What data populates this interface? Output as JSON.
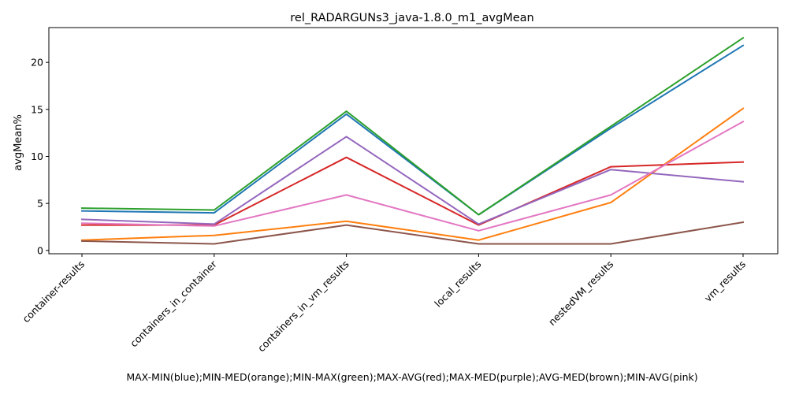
{
  "chart_data": {
    "type": "line",
    "title": "rel_RADARGUNs3_java-1.8.0_m1_avgMean",
    "xlabel": "MAX-MIN(blue);MIN-MED(orange);MIN-MAX(green);MAX-AVG(red);MAX-MED(purple);AVG-MED(brown);MIN-AVG(pink)",
    "ylabel": "avgMean%",
    "categories": [
      "container-results",
      "containers_in_container",
      "containers_in_vm_results",
      "local_results",
      "nestedVM_results",
      "vm_results"
    ],
    "ylim": [
      -0.35,
      23.7
    ],
    "yticks": [
      0,
      5,
      10,
      15,
      20
    ],
    "grid": false,
    "series": [
      {
        "color": "#1f77b4",
        "values": [
          4.2,
          4.0,
          14.5,
          3.8,
          13.0,
          21.8
        ]
      },
      {
        "color": "#ff7f0e",
        "values": [
          1.1,
          1.6,
          3.1,
          1.1,
          5.1,
          15.1
        ]
      },
      {
        "color": "#2ca02c",
        "values": [
          4.5,
          4.3,
          14.8,
          3.8,
          13.2,
          22.6
        ]
      },
      {
        "color": "#d62728",
        "values": [
          2.7,
          2.7,
          9.9,
          2.7,
          8.9,
          9.4
        ]
      },
      {
        "color": "#9467bd",
        "values": [
          3.3,
          2.8,
          12.1,
          2.8,
          8.6,
          7.3
        ]
      },
      {
        "color": "#8c564b",
        "values": [
          1.0,
          0.7,
          2.7,
          0.7,
          0.7,
          3.0
        ]
      },
      {
        "color": "#e377c2",
        "values": [
          2.9,
          2.6,
          5.9,
          2.1,
          5.9,
          13.7
        ]
      }
    ]
  }
}
